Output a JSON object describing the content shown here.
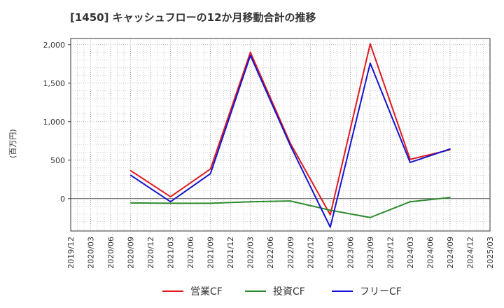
{
  "chart_data": {
    "type": "line",
    "title": "[1450]  キャッシュフローの12か月移動合計の推移",
    "ylabel": "(百万円)",
    "xlabel": "",
    "ylim": [
      -420,
      2080
    ],
    "yticks": [
      0,
      500,
      1000,
      1500,
      2000
    ],
    "ytick_labels": [
      "0",
      "500",
      "1,000",
      "1,500",
      "2,000"
    ],
    "x_tick_labels": [
      "2019/12",
      "2020/03",
      "2020/06",
      "2020/09",
      "2020/12",
      "2021/03",
      "2021/06",
      "2021/09",
      "2021/12",
      "2022/03",
      "2022/06",
      "2022/09",
      "2022/12",
      "2023/03",
      "2023/06",
      "2023/09",
      "2023/12",
      "2024/03",
      "2024/06",
      "2024/09",
      "2024/12",
      "2025/03"
    ],
    "grid": true,
    "legend_position": "bottom",
    "series": [
      {
        "name": "営業CF",
        "color": "#e0191f",
        "x": [
          "2020/09",
          "2021/03",
          "2021/09",
          "2022/03",
          "2022/09",
          "2023/03",
          "2023/09",
          "2024/03",
          "2024/09"
        ],
        "values": [
          365,
          25,
          385,
          1900,
          720,
          -210,
          2010,
          510,
          635
        ]
      },
      {
        "name": "投資CF",
        "color": "#2c8a2c",
        "x": [
          "2020/09",
          "2021/03",
          "2021/09",
          "2022/03",
          "2022/09",
          "2023/03",
          "2023/09",
          "2024/03",
          "2024/09"
        ],
        "values": [
          -55,
          -60,
          -60,
          -40,
          -30,
          -150,
          -245,
          -40,
          15
        ]
      },
      {
        "name": "フリーCF",
        "color": "#1414d2",
        "x": [
          "2020/09",
          "2021/03",
          "2021/09",
          "2022/03",
          "2022/09",
          "2023/03",
          "2023/09",
          "2024/03",
          "2024/09"
        ],
        "values": [
          305,
          -40,
          325,
          1860,
          690,
          -370,
          1760,
          470,
          645
        ]
      }
    ]
  }
}
